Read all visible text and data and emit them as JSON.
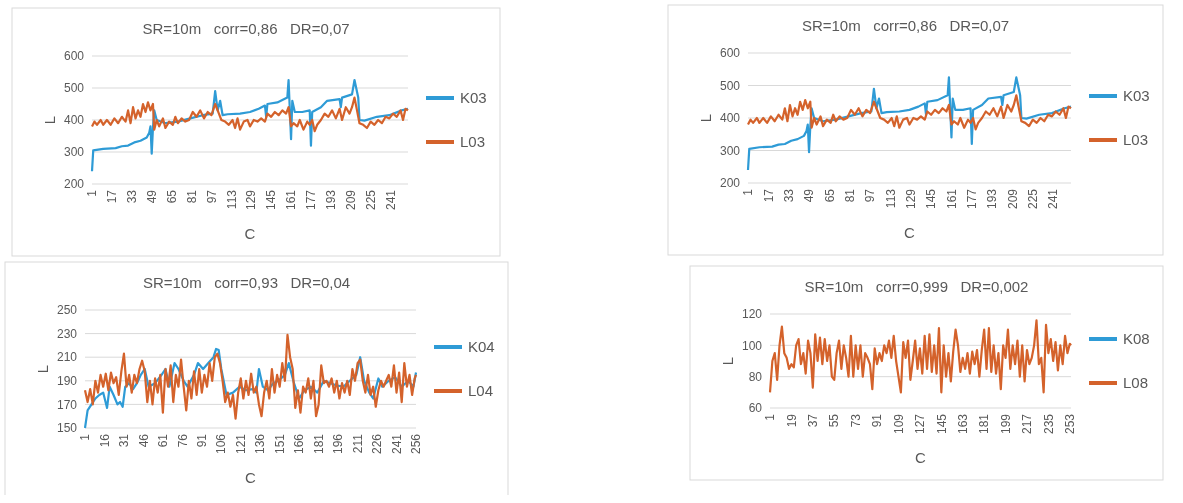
{
  "chart_data": [
    {
      "type": "line",
      "title": "SR=10m   corr=0,86   DR=0,07",
      "xlabel": "C",
      "ylabel": "L",
      "xlim": [
        1,
        255
      ],
      "xticks": [
        1,
        17,
        33,
        49,
        65,
        81,
        97,
        113,
        129,
        145,
        161,
        177,
        193,
        209,
        225,
        241
      ],
      "ylim": [
        200,
        600
      ],
      "yticks": [
        200,
        300,
        400,
        500,
        600
      ],
      "grid": "y",
      "legend": "right",
      "marker": "none",
      "line_style": "solid",
      "series": [
        {
          "name": "K03",
          "color": "#2e9bd6",
          "x": [
            1,
            2,
            10,
            20,
            25,
            30,
            35,
            40,
            45,
            47,
            48,
            49,
            50,
            51,
            53,
            60,
            70,
            80,
            90,
            98,
            100,
            102,
            104,
            106,
            110,
            120,
            128,
            135,
            140,
            141,
            142,
            150,
            158,
            159,
            161,
            162,
            164,
            170,
            176,
            177,
            178,
            185,
            190,
            200,
            201,
            202,
            210,
            212,
            215,
            216,
            220,
            230,
            240,
            250,
            255
          ],
          "values": [
            240,
            305,
            310,
            312,
            318,
            320,
            330,
            335,
            345,
            360,
            380,
            295,
            375,
            430,
            400,
            390,
            395,
            405,
            415,
            420,
            490,
            430,
            460,
            415,
            418,
            420,
            425,
            435,
            445,
            410,
            450,
            455,
            470,
            525,
            340,
            460,
            425,
            425,
            430,
            320,
            425,
            440,
            460,
            465,
            440,
            470,
            480,
            525,
            470,
            400,
            398,
            410,
            415,
            430,
            435
          ]
        },
        {
          "name": "L03",
          "color": "#d4622b",
          "x": [
            1,
            3,
            5,
            8,
            10,
            13,
            16,
            19,
            22,
            25,
            28,
            30,
            32,
            34,
            36,
            38,
            40,
            42,
            44,
            46,
            48,
            50,
            51,
            53,
            55,
            58,
            60,
            63,
            66,
            68,
            70,
            73,
            76,
            79,
            82,
            85,
            88,
            91,
            94,
            97,
            100,
            103,
            105,
            108,
            111,
            114,
            116,
            118,
            120,
            123,
            126,
            128,
            131,
            134,
            137,
            140,
            142,
            145,
            148,
            151,
            154,
            157,
            159,
            161,
            163,
            166,
            168,
            171,
            174,
            176,
            178,
            180,
            182,
            185,
            188,
            191,
            194,
            197,
            200,
            202,
            205,
            208,
            210,
            212,
            214,
            216,
            219,
            222,
            225,
            228,
            231,
            234,
            237,
            240,
            243,
            246,
            249,
            251,
            253,
            255
          ],
          "values": [
            380,
            395,
            385,
            400,
            385,
            400,
            385,
            405,
            390,
            410,
            395,
            430,
            390,
            440,
            405,
            430,
            410,
            450,
            425,
            455,
            430,
            450,
            370,
            400,
            380,
            405,
            375,
            395,
            385,
            410,
            390,
            405,
            395,
            400,
            425,
            410,
            430,
            405,
            425,
            415,
            450,
            420,
            400,
            395,
            385,
            400,
            375,
            405,
            370,
            395,
            400,
            380,
            400,
            395,
            405,
            395,
            420,
            410,
            425,
            415,
            430,
            420,
            440,
            380,
            390,
            380,
            400,
            370,
            395,
            385,
            400,
            365,
            385,
            400,
            420,
            410,
            430,
            405,
            435,
            400,
            440,
            420,
            440,
            470,
            430,
            390,
            385,
            375,
            395,
            385,
            400,
            390,
            410,
            405,
            420,
            410,
            430,
            400,
            435,
            430
          ]
        }
      ]
    },
    {
      "type": "line",
      "title": "SR=10m   corr=0,86   DR=0,07",
      "xlabel": "C",
      "ylabel": "L",
      "xlim": [
        1,
        255
      ],
      "xticks": [
        1,
        17,
        33,
        49,
        65,
        81,
        97,
        113,
        129,
        145,
        161,
        177,
        193,
        209,
        225,
        241
      ],
      "ylim": [
        200,
        600
      ],
      "yticks": [
        200,
        300,
        400,
        500,
        600
      ],
      "grid": "y",
      "legend": "right",
      "marker": "none",
      "line_style": "solid",
      "series": [
        {
          "name": "K03",
          "color": "#2e9bd6",
          "x": [
            1,
            2,
            10,
            20,
            25,
            30,
            35,
            40,
            45,
            47,
            48,
            49,
            50,
            51,
            53,
            60,
            70,
            80,
            90,
            98,
            100,
            102,
            104,
            106,
            110,
            120,
            128,
            135,
            140,
            141,
            142,
            150,
            158,
            159,
            161,
            162,
            164,
            170,
            176,
            177,
            178,
            185,
            190,
            200,
            201,
            202,
            210,
            212,
            215,
            216,
            220,
            230,
            240,
            250,
            255
          ],
          "values": [
            240,
            305,
            310,
            312,
            318,
            320,
            330,
            335,
            345,
            360,
            380,
            295,
            375,
            430,
            400,
            390,
            395,
            405,
            415,
            420,
            490,
            430,
            460,
            415,
            418,
            420,
            425,
            435,
            445,
            410,
            450,
            455,
            470,
            525,
            340,
            460,
            425,
            425,
            430,
            320,
            425,
            440,
            460,
            465,
            440,
            470,
            480,
            525,
            470,
            400,
            398,
            410,
            415,
            430,
            435
          ]
        },
        {
          "name": "L03",
          "color": "#d4622b",
          "x": [
            1,
            3,
            5,
            8,
            10,
            13,
            16,
            19,
            22,
            25,
            28,
            30,
            32,
            34,
            36,
            38,
            40,
            42,
            44,
            46,
            48,
            50,
            51,
            53,
            55,
            58,
            60,
            63,
            66,
            68,
            70,
            73,
            76,
            79,
            82,
            85,
            88,
            91,
            94,
            97,
            100,
            103,
            105,
            108,
            111,
            114,
            116,
            118,
            120,
            123,
            126,
            128,
            131,
            134,
            137,
            140,
            142,
            145,
            148,
            151,
            154,
            157,
            159,
            161,
            163,
            166,
            168,
            171,
            174,
            176,
            178,
            180,
            182,
            185,
            188,
            191,
            194,
            197,
            200,
            202,
            205,
            208,
            210,
            212,
            214,
            216,
            219,
            222,
            225,
            228,
            231,
            234,
            237,
            240,
            243,
            246,
            249,
            251,
            253,
            255
          ],
          "values": [
            380,
            395,
            385,
            400,
            385,
            400,
            385,
            405,
            390,
            410,
            395,
            430,
            390,
            440,
            405,
            430,
            410,
            450,
            425,
            455,
            430,
            450,
            370,
            400,
            380,
            405,
            375,
            395,
            385,
            410,
            390,
            405,
            395,
            400,
            425,
            410,
            430,
            405,
            425,
            415,
            450,
            420,
            400,
            395,
            385,
            400,
            375,
            405,
            370,
            395,
            400,
            380,
            400,
            395,
            405,
            395,
            420,
            410,
            425,
            415,
            430,
            420,
            440,
            380,
            390,
            380,
            400,
            370,
            395,
            385,
            400,
            365,
            385,
            400,
            420,
            410,
            430,
            405,
            435,
            400,
            440,
            420,
            440,
            470,
            430,
            390,
            385,
            375,
            395,
            385,
            400,
            390,
            410,
            405,
            420,
            410,
            430,
            400,
            435,
            430
          ]
        }
      ]
    },
    {
      "type": "line",
      "title": "SR=10m   corr=0,93   DR=0,04",
      "xlabel": "C",
      "ylabel": "L",
      "xlim": [
        1,
        256
      ],
      "xticks": [
        1,
        16,
        31,
        46,
        61,
        76,
        91,
        106,
        121,
        136,
        151,
        166,
        181,
        196,
        211,
        226,
        241,
        256
      ],
      "ylim": [
        150,
        250
      ],
      "yticks": [
        150,
        170,
        190,
        210,
        230,
        250
      ],
      "grid": "y",
      "legend": "right",
      "marker": "none",
      "line_style": "solid",
      "series": [
        {
          "name": "K04",
          "color": "#2e9bd6",
          "x": [
            1,
            3,
            6,
            9,
            12,
            15,
            18,
            20,
            23,
            26,
            28,
            30,
            32,
            35,
            38,
            41,
            44,
            47,
            50,
            55,
            60,
            63,
            66,
            70,
            73,
            77,
            80,
            85,
            88,
            92,
            96,
            100,
            102,
            104,
            106,
            110,
            115,
            120,
            125,
            130,
            133,
            135,
            138,
            142,
            146,
            150,
            155,
            158,
            162,
            166,
            170,
            175,
            180,
            185,
            190,
            195,
            200,
            205,
            210,
            213,
            216,
            220,
            223,
            227,
            230,
            235,
            240,
            245,
            250,
            254,
            256
          ],
          "values": [
            150,
            165,
            170,
            175,
            178,
            180,
            167,
            185,
            178,
            170,
            172,
            168,
            185,
            188,
            183,
            188,
            195,
            200,
            185,
            188,
            195,
            200,
            185,
            205,
            200,
            190,
            185,
            195,
            205,
            200,
            205,
            210,
            217,
            216,
            200,
            178,
            180,
            185,
            182,
            183,
            180,
            200,
            185,
            182,
            188,
            190,
            195,
            205,
            188,
            175,
            182,
            185,
            180,
            190,
            188,
            186,
            185,
            190,
            195,
            210,
            190,
            180,
            175,
            192,
            185,
            190,
            193,
            185,
            190,
            185,
            197
          ]
        },
        {
          "name": "L04",
          "color": "#d4622b",
          "x": [
            1,
            3,
            5,
            7,
            9,
            11,
            13,
            15,
            17,
            19,
            21,
            23,
            25,
            27,
            29,
            31,
            33,
            35,
            37,
            39,
            41,
            43,
            45,
            47,
            49,
            51,
            53,
            55,
            57,
            59,
            61,
            63,
            65,
            67,
            69,
            71,
            73,
            75,
            77,
            79,
            81,
            83,
            85,
            87,
            89,
            91,
            93,
            95,
            97,
            99,
            101,
            103,
            105,
            107,
            109,
            111,
            113,
            115,
            117,
            119,
            121,
            123,
            125,
            127,
            129,
            131,
            133,
            135,
            137,
            139,
            141,
            143,
            145,
            147,
            149,
            151,
            153,
            155,
            157,
            159,
            161,
            163,
            165,
            167,
            169,
            171,
            173,
            175,
            177,
            179,
            181,
            183,
            185,
            187,
            189,
            191,
            193,
            195,
            197,
            199,
            201,
            203,
            205,
            207,
            209,
            211,
            213,
            215,
            217,
            219,
            221,
            223,
            225,
            227,
            229,
            231,
            233,
            235,
            237,
            239,
            241,
            243,
            245,
            247,
            249,
            251,
            253,
            255,
            256
          ],
          "values": [
            182,
            172,
            183,
            170,
            190,
            180,
            195,
            185,
            196,
            182,
            197,
            188,
            193,
            178,
            198,
            213,
            185,
            195,
            180,
            195,
            188,
            200,
            207,
            198,
            172,
            190,
            170,
            192,
            180,
            195,
            163,
            200,
            185,
            203,
            172,
            195,
            185,
            208,
            185,
            165,
            190,
            175,
            198,
            178,
            200,
            180,
            195,
            185,
            205,
            190,
            210,
            213,
            205,
            190,
            172,
            180,
            168,
            178,
            158,
            180,
            192,
            175,
            190,
            178,
            196,
            180,
            185,
            170,
            160,
            180,
            190,
            175,
            200,
            180,
            195,
            185,
            205,
            190,
            229,
            210,
            200,
            167,
            182,
            163,
            185,
            180,
            192,
            175,
            190,
            160,
            170,
            203,
            188,
            190,
            185,
            192,
            180,
            190,
            175,
            188,
            180,
            190,
            178,
            200,
            190,
            205,
            208,
            190,
            180,
            195,
            178,
            185,
            168,
            182,
            190,
            185,
            190,
            195,
            185,
            203,
            180,
            197,
            172,
            205,
            185,
            195,
            178,
            192,
            195
          ]
        }
      ]
    },
    {
      "type": "line",
      "title": "SR=10m   corr=0,999   DR=0,002",
      "xlabel": "C",
      "ylabel": "L",
      "xlim": [
        1,
        254
      ],
      "xticks": [
        1,
        19,
        37,
        55,
        73,
        91,
        109,
        127,
        145,
        163,
        181,
        199,
        217,
        235,
        253
      ],
      "ylim": [
        60,
        120
      ],
      "yticks": [
        60,
        80,
        100,
        120
      ],
      "grid": "y",
      "legend": "right",
      "marker": "none",
      "line_style": "solid",
      "x": [
        1,
        3,
        5,
        7,
        9,
        11,
        13,
        15,
        17,
        19,
        21,
        23,
        25,
        27,
        29,
        31,
        33,
        35,
        37,
        39,
        41,
        43,
        45,
        47,
        49,
        51,
        53,
        55,
        57,
        59,
        61,
        63,
        65,
        67,
        69,
        71,
        73,
        75,
        77,
        79,
        81,
        83,
        85,
        87,
        89,
        91,
        93,
        95,
        97,
        99,
        101,
        103,
        105,
        107,
        109,
        111,
        113,
        115,
        117,
        119,
        121,
        123,
        125,
        127,
        129,
        131,
        133,
        135,
        137,
        139,
        141,
        143,
        145,
        147,
        149,
        151,
        153,
        155,
        157,
        159,
        161,
        163,
        165,
        167,
        169,
        171,
        173,
        175,
        177,
        179,
        181,
        183,
        185,
        187,
        189,
        191,
        193,
        195,
        197,
        199,
        201,
        203,
        205,
        207,
        209,
        211,
        213,
        215,
        217,
        219,
        221,
        223,
        225,
        227,
        229,
        231,
        233,
        235,
        237,
        239,
        241,
        243,
        245,
        247,
        249,
        251,
        253,
        254
      ],
      "series": [
        {
          "name": "K08",
          "color": "#2e9bd6",
          "values": [
            null,
            null,
            null,
            null,
            null,
            null,
            null,
            null,
            null,
            null,
            null,
            null,
            null,
            null,
            null,
            null,
            null,
            null,
            null,
            null,
            null,
            null,
            null,
            null,
            null,
            null,
            null,
            null,
            null,
            null,
            null,
            null,
            null,
            null,
            null,
            null,
            null,
            null,
            null,
            null,
            null,
            null,
            null,
            null,
            null,
            null,
            null,
            null,
            null,
            null,
            null,
            null,
            null,
            null,
            null,
            null,
            null,
            null,
            null,
            null,
            null,
            null,
            null,
            null,
            null,
            null,
            null,
            null,
            null,
            null,
            null,
            null,
            null,
            null,
            null,
            null,
            null,
            null,
            null,
            null,
            null,
            null,
            null,
            null,
            null,
            null,
            null,
            null,
            null,
            null,
            null,
            null,
            null,
            null,
            null,
            null,
            null,
            null,
            null,
            null,
            null,
            null,
            null,
            null,
            null,
            null,
            null,
            null,
            null,
            null,
            null,
            null,
            null,
            null,
            null,
            null,
            null,
            null,
            null,
            null,
            null,
            null,
            null,
            null,
            null,
            null,
            null,
            null
          ]
        },
        {
          "name": "L08",
          "color": "#d4622b",
          "values": [
            70,
            90,
            95,
            78,
            100,
            112,
            95,
            92,
            85,
            88,
            86,
            100,
            104,
            88,
            95,
            82,
            103,
            95,
            73,
            107,
            90,
            105,
            88,
            104,
            90,
            100,
            80,
            78,
            95,
            103,
            85,
            100,
            92,
            80,
            106,
            80,
            100,
            85,
            100,
            80,
            95,
            92,
            88,
            72,
            98,
            88,
            95,
            90,
            100,
            95,
            103,
            92,
            106,
            90,
            80,
            70,
            102,
            92,
            103,
            78,
            90,
            103,
            85,
            98,
            82,
            106,
            85,
            107,
            83,
            100,
            82,
            111,
            70,
            100,
            80,
            95,
            77,
            96,
            110,
            100,
            83,
            92,
            85,
            95,
            82,
            96,
            88,
            97,
            80,
            97,
            110,
            85,
            111,
            83,
            100,
            82,
            95,
            72,
            100,
            92,
            110,
            85,
            100,
            88,
            103,
            80,
            100,
            77,
            97,
            88,
            92,
            100,
            116,
            88,
            92,
            70,
            113,
            95,
            104,
            90,
            102,
            84,
            100,
            88,
            106,
            95,
            101,
            100
          ]
        }
      ]
    }
  ]
}
